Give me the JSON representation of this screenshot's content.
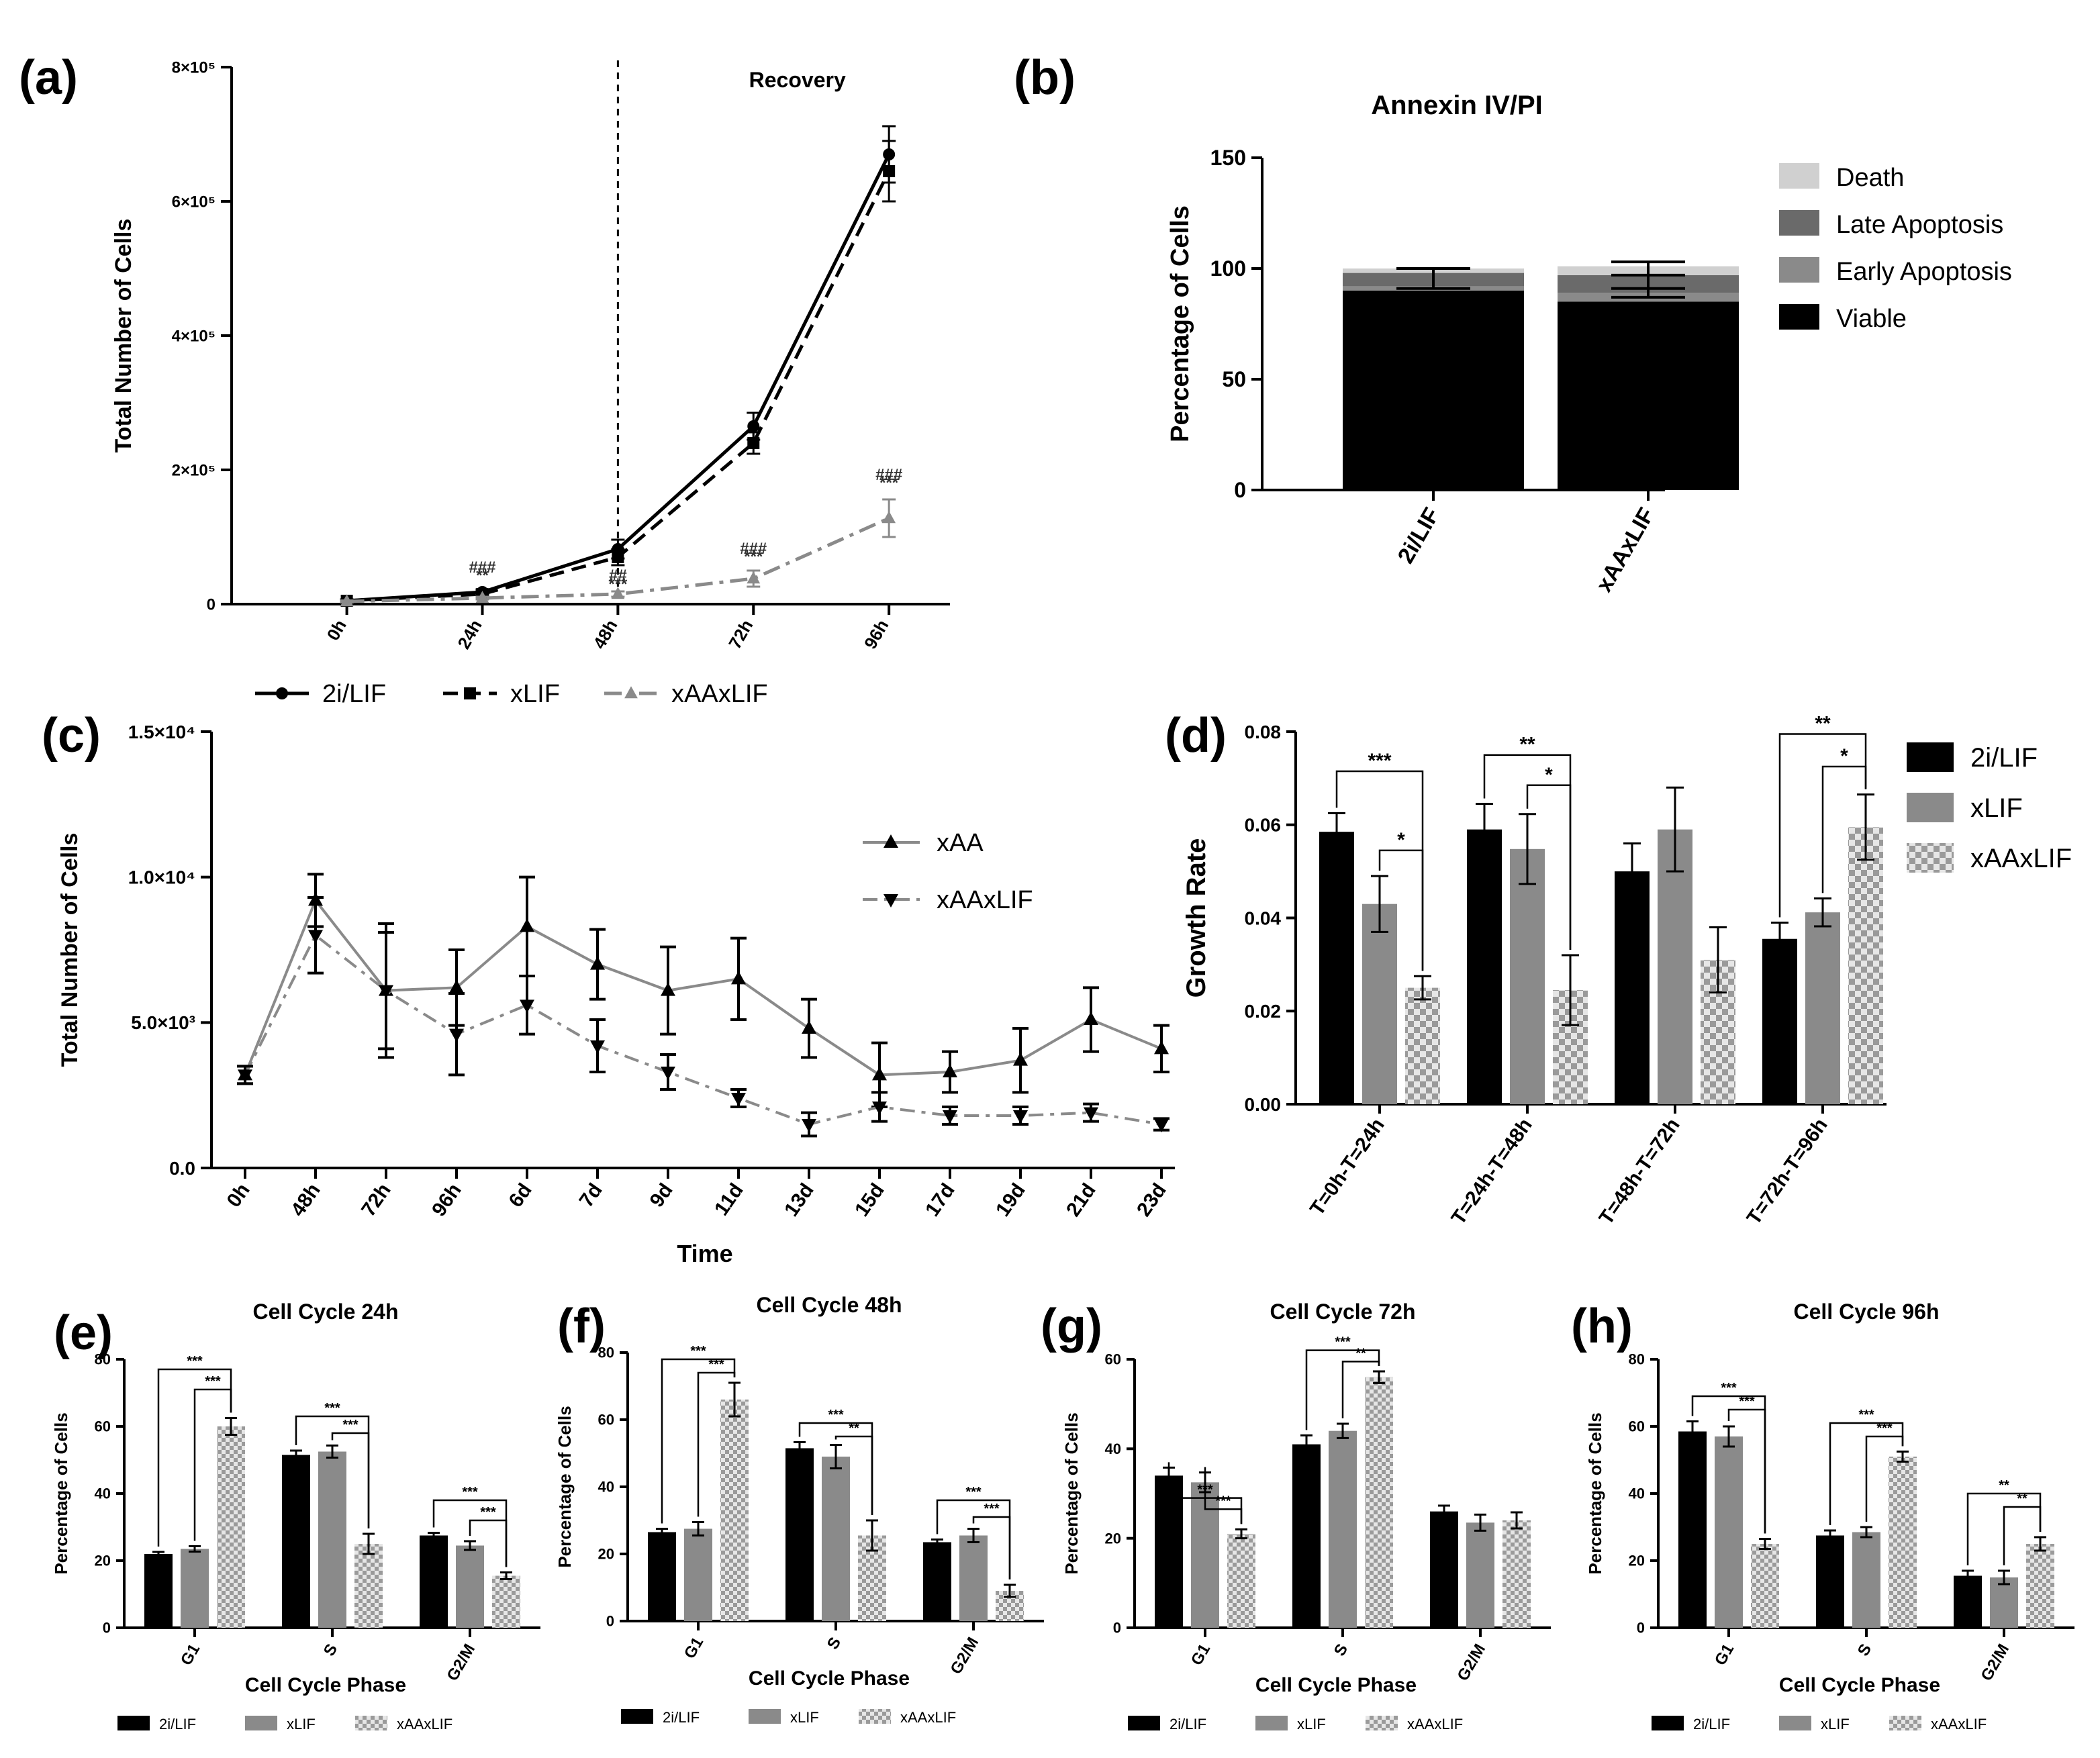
{
  "figure": {
    "panel_letters": [
      "(a)",
      "(b)",
      "(c)",
      "(d)",
      "(e)",
      "(f)",
      "(g)",
      "(h)"
    ]
  },
  "colors": {
    "black": "#000000",
    "dark_gray": "#6a6a6a",
    "mid_gray": "#8a8a8a",
    "light_gray": "#a9a9a9",
    "very_light": "#d0d0d0"
  },
  "chart_data": [
    {
      "id": "a",
      "type": "line",
      "title": "",
      "annotation": "Recovery",
      "xlabel": "",
      "ylabel": "Total Number of Cells",
      "categories": [
        "0h",
        "24h",
        "48h",
        "72h",
        "96h"
      ],
      "ylim": [
        0,
        800000
      ],
      "yticks": [
        0,
        200000,
        400000,
        600000,
        800000
      ],
      "ytick_labels": [
        "0",
        "2×10⁵",
        "4×10⁵",
        "6×10⁵",
        "8×10⁵"
      ],
      "divider_at": "48h",
      "series": [
        {
          "name": "2i/LIF",
          "values": [
            5000,
            18000,
            82000,
            265000,
            670000
          ],
          "errors": [
            2000,
            4000,
            14000,
            20000,
            42000
          ],
          "style": "solid",
          "color": "#000000",
          "marker": "circle"
        },
        {
          "name": "xLIF",
          "values": [
            5000,
            15000,
            70000,
            240000,
            645000
          ],
          "errors": [
            2000,
            4000,
            12000,
            16000,
            45000
          ],
          "style": "dashed",
          "color": "#000000",
          "marker": "square"
        },
        {
          "name": "xAAxLIF",
          "values": [
            4000,
            9000,
            15000,
            38000,
            128000
          ],
          "errors": [
            1500,
            2000,
            4000,
            12000,
            28000
          ],
          "style": "dashdot",
          "color": "#8a8a8a",
          "marker": "triangle"
        }
      ],
      "annotations": [
        {
          "text": "###",
          "x": "24h",
          "y": 47000
        },
        {
          "text": "**",
          "x": "24h",
          "y": 35000
        },
        {
          "text": "##",
          "x": "48h",
          "y": 35000
        },
        {
          "text": "***",
          "x": "48h",
          "y": 22000
        },
        {
          "text": "###",
          "x": "72h",
          "y": 75000
        },
        {
          "text": "***",
          "x": "72h",
          "y": 63000
        },
        {
          "text": "###",
          "x": "96h",
          "y": 185000
        },
        {
          "text": "***",
          "x": "96h",
          "y": 173000
        }
      ],
      "legend": "bottom",
      "grid": false
    },
    {
      "id": "b",
      "type": "bar",
      "stacked": true,
      "title": "Annexin IV/PI",
      "xlabel": "",
      "ylabel": "Percentage of Cells",
      "categories": [
        "2i/LIF",
        "xAAxLIF"
      ],
      "ylim": [
        0,
        150
      ],
      "yticks": [
        0,
        50,
        100,
        150
      ],
      "series": [
        {
          "name": "Viable",
          "values": [
            90,
            85
          ],
          "color": "#000000"
        },
        {
          "name": "Early Apoptosis",
          "values": [
            2,
            4
          ],
          "color": "#8a8a8a"
        },
        {
          "name": "Late Apoptosis",
          "values": [
            6,
            8
          ],
          "color": "#6a6a6a"
        },
        {
          "name": "Death",
          "values": [
            2,
            4
          ],
          "color": "#d0d0d0"
        }
      ],
      "errors_at": [
        [
          91,
          100
        ],
        [
          87,
          91,
          97,
          103
        ]
      ],
      "legend_order": [
        "Death",
        "Late Apoptosis",
        "Early Apoptosis",
        "Viable"
      ],
      "legend": "right",
      "grid": false
    },
    {
      "id": "c",
      "type": "line",
      "title": "",
      "xlabel": "Time",
      "ylabel": "Total Number of Cells",
      "categories": [
        "0h",
        "48h",
        "72h",
        "96h",
        "6d",
        "7d",
        "9d",
        "11d",
        "13d",
        "15d",
        "17d",
        "19d",
        "21d",
        "23d"
      ],
      "ylim": [
        0,
        15000
      ],
      "yticks": [
        0,
        5000,
        10000,
        15000
      ],
      "ytick_labels": [
        "0.0",
        "5.0×10³",
        "1.0×10⁴",
        "1.5×10⁴"
      ],
      "series": [
        {
          "name": "xAA",
          "values": [
            3200,
            9200,
            6100,
            6200,
            8300,
            7000,
            6100,
            6500,
            4800,
            3200,
            3300,
            3700,
            5100,
            4100
          ],
          "errors": [
            300,
            900,
            2300,
            1300,
            1700,
            1200,
            1500,
            1400,
            1000,
            1100,
            700,
            1100,
            1100,
            800
          ],
          "style": "solid",
          "color": "#8a8a8a",
          "marker": "triangle-up"
        },
        {
          "name": "xAAxLIF",
          "values": [
            3200,
            8000,
            6100,
            4600,
            5600,
            4200,
            3300,
            2400,
            1500,
            2100,
            1800,
            1800,
            1900,
            1500
          ],
          "errors": [
            300,
            1300,
            2000,
            1400,
            1000,
            900,
            600,
            300,
            400,
            500,
            300,
            300,
            300,
            200
          ],
          "style": "dashdot",
          "color": "#8a8a8a",
          "marker": "triangle-down"
        }
      ],
      "legend": "top-right",
      "grid": false
    },
    {
      "id": "d",
      "type": "bar",
      "title": "",
      "xlabel": "",
      "ylabel": "Growth Rate",
      "categories": [
        "T=0h-T=24h",
        "T=24h-T=48h",
        "T=48h-T=72h",
        "T=72h-T=96h"
      ],
      "ylim": [
        0,
        0.08
      ],
      "yticks": [
        0,
        0.02,
        0.04,
        0.06,
        0.08
      ],
      "ytick_labels": [
        "0.00",
        "0.02",
        "0.04",
        "0.06",
        "0.08"
      ],
      "series": [
        {
          "name": "2i/LIF",
          "values": [
            0.0585,
            0.059,
            0.05,
            0.0355
          ],
          "errors": [
            0.004,
            0.0055,
            0.006,
            0.0035
          ],
          "color": "#000000",
          "pattern": "solid"
        },
        {
          "name": "xLIF",
          "values": [
            0.043,
            0.0548,
            0.059,
            0.0412
          ],
          "errors": [
            0.006,
            0.0075,
            0.009,
            0.003
          ],
          "color": "#8a8a8a",
          "pattern": "solid"
        },
        {
          "name": "xAAxLIF",
          "values": [
            0.025,
            0.0245,
            0.031,
            0.0595
          ],
          "errors": [
            0.0025,
            0.0075,
            0.007,
            0.007
          ],
          "color": "#a9a9a9",
          "pattern": "checker"
        }
      ],
      "significance": [
        {
          "group": 0,
          "from": 0,
          "to": 2,
          "text": "***",
          "y": 0.0715
        },
        {
          "group": 0,
          "from": 1,
          "to": 2,
          "text": "*",
          "y": 0.0545
        },
        {
          "group": 1,
          "from": 0,
          "to": 2,
          "text": "**",
          "y": 0.075
        },
        {
          "group": 1,
          "from": 1,
          "to": 2,
          "text": "*",
          "y": 0.0685
        },
        {
          "group": 3,
          "from": 0,
          "to": 2,
          "text": "**",
          "y": 0.0795
        },
        {
          "group": 3,
          "from": 1,
          "to": 2,
          "text": "*",
          "y": 0.0725
        }
      ],
      "legend": "right",
      "grid": false
    },
    {
      "id": "e",
      "type": "bar",
      "title": "Cell Cycle 24h",
      "xlabel": "Cell Cycle Phase",
      "ylabel": "Percentage of Cells",
      "categories": [
        "G1",
        "S",
        "G2/M"
      ],
      "ylim": [
        0,
        80
      ],
      "yticks": [
        0,
        20,
        40,
        60,
        80
      ],
      "series": [
        {
          "name": "2i/LIF",
          "values": [
            22,
            51.5,
            27.5
          ],
          "errors": [
            0.6,
            1.3,
            0.8
          ],
          "color": "#000000",
          "pattern": "solid"
        },
        {
          "name": "xLIF",
          "values": [
            23.5,
            52.5,
            24.5
          ],
          "errors": [
            0.8,
            1.8,
            1.3
          ],
          "color": "#8a8a8a",
          "pattern": "solid"
        },
        {
          "name": "xAAxLIF",
          "values": [
            60,
            25,
            15.5
          ],
          "errors": [
            2.5,
            3,
            1
          ],
          "color": "#a9a9a9",
          "pattern": "checker"
        }
      ],
      "significance": [
        {
          "group": 0,
          "from": 0,
          "to": 2,
          "text": "***",
          "y": 77
        },
        {
          "group": 0,
          "from": 1,
          "to": 2,
          "text": "***",
          "y": 71
        },
        {
          "group": 1,
          "from": 0,
          "to": 2,
          "text": "***",
          "y": 63
        },
        {
          "group": 1,
          "from": 1,
          "to": 2,
          "text": "***",
          "y": 58
        },
        {
          "group": 2,
          "from": 0,
          "to": 2,
          "text": "***",
          "y": 38
        },
        {
          "group": 2,
          "from": 1,
          "to": 2,
          "text": "***",
          "y": 32
        }
      ],
      "legend": "bottom",
      "grid": false
    },
    {
      "id": "f",
      "type": "bar",
      "title": "Cell Cycle 48h",
      "xlabel": "Cell Cycle Phase",
      "ylabel": "Percentage of Cells",
      "categories": [
        "G1",
        "S",
        "G2/M"
      ],
      "ylim": [
        0,
        80
      ],
      "yticks": [
        0,
        20,
        40,
        60,
        80
      ],
      "series": [
        {
          "name": "2i/LIF",
          "values": [
            26.5,
            51.5,
            23.5
          ],
          "errors": [
            1,
            1.8,
            0.8
          ],
          "color": "#000000",
          "pattern": "solid"
        },
        {
          "name": "xLIF",
          "values": [
            27.5,
            49,
            25.5
          ],
          "errors": [
            2,
            3.5,
            2
          ],
          "color": "#8a8a8a",
          "pattern": "solid"
        },
        {
          "name": "xAAxLIF",
          "values": [
            66,
            25.5,
            9
          ],
          "errors": [
            5,
            4.5,
            1.8
          ],
          "color": "#a9a9a9",
          "pattern": "checker"
        }
      ],
      "significance": [
        {
          "group": 0,
          "from": 0,
          "to": 2,
          "text": "***",
          "y": 78
        },
        {
          "group": 0,
          "from": 1,
          "to": 2,
          "text": "***",
          "y": 74
        },
        {
          "group": 1,
          "from": 0,
          "to": 2,
          "text": "***",
          "y": 59
        },
        {
          "group": 1,
          "from": 1,
          "to": 2,
          "text": "**",
          "y": 55
        },
        {
          "group": 2,
          "from": 0,
          "to": 2,
          "text": "***",
          "y": 36
        },
        {
          "group": 2,
          "from": 1,
          "to": 2,
          "text": "***",
          "y": 31
        }
      ],
      "legend": "bottom",
      "grid": false
    },
    {
      "id": "g",
      "type": "bar",
      "title": "Cell Cycle 72h",
      "xlabel": "Cell Cycle Phase",
      "ylabel": "Percentage of Cells",
      "categories": [
        "G1",
        "S",
        "G2/M"
      ],
      "ylim": [
        0,
        60
      ],
      "yticks": [
        0,
        20,
        40,
        60
      ],
      "series": [
        {
          "name": "2i/LIF",
          "values": [
            34,
            41,
            26
          ],
          "errors": [
            1.8,
            2,
            1.3
          ],
          "color": "#000000",
          "pattern": "solid"
        },
        {
          "name": "xLIF",
          "values": [
            32.5,
            44,
            23.5
          ],
          "errors": [
            2.2,
            1.6,
            1.8
          ],
          "color": "#8a8a8a",
          "pattern": "solid"
        },
        {
          "name": "xAAxLIF",
          "values": [
            21,
            56,
            24
          ],
          "errors": [
            1,
            1.3,
            1.8
          ],
          "color": "#a9a9a9",
          "pattern": "checker"
        }
      ],
      "significance": [
        {
          "group": 0,
          "from": 0,
          "to": 2,
          "text": "***",
          "y": 29
        },
        {
          "group": 0,
          "from": 1,
          "to": 2,
          "text": "***",
          "y": 26.5
        },
        {
          "group": 1,
          "from": 0,
          "to": 2,
          "text": "***",
          "y": 62
        },
        {
          "group": 1,
          "from": 1,
          "to": 2,
          "text": "**",
          "y": 59.5
        }
      ],
      "legend": "bottom",
      "grid": false
    },
    {
      "id": "h",
      "type": "bar",
      "title": "Cell Cycle 96h",
      "xlabel": "Cell Cycle Phase",
      "ylabel": "Percentage of Cells",
      "categories": [
        "G1",
        "S",
        "G2/M"
      ],
      "ylim": [
        0,
        80
      ],
      "yticks": [
        0,
        20,
        40,
        60,
        80
      ],
      "series": [
        {
          "name": "2i/LIF",
          "values": [
            58.5,
            27.5,
            15.5
          ],
          "errors": [
            3,
            1.5,
            1.5
          ],
          "color": "#000000",
          "pattern": "solid"
        },
        {
          "name": "xLIF",
          "values": [
            57,
            28.5,
            15
          ],
          "errors": [
            3,
            1.5,
            2
          ],
          "color": "#8a8a8a",
          "pattern": "solid"
        },
        {
          "name": "xAAxLIF",
          "values": [
            25,
            51,
            25
          ],
          "errors": [
            1.5,
            1.5,
            2
          ],
          "color": "#a9a9a9",
          "pattern": "checker"
        }
      ],
      "significance": [
        {
          "group": 0,
          "from": 0,
          "to": 2,
          "text": "***",
          "y": 69
        },
        {
          "group": 0,
          "from": 1,
          "to": 2,
          "text": "***",
          "y": 65
        },
        {
          "group": 1,
          "from": 0,
          "to": 2,
          "text": "***",
          "y": 61
        },
        {
          "group": 1,
          "from": 1,
          "to": 2,
          "text": "***",
          "y": 57
        },
        {
          "group": 2,
          "from": 0,
          "to": 2,
          "text": "**",
          "y": 40
        },
        {
          "group": 2,
          "from": 1,
          "to": 2,
          "text": "**",
          "y": 36
        }
      ],
      "legend": "bottom",
      "grid": false
    }
  ]
}
